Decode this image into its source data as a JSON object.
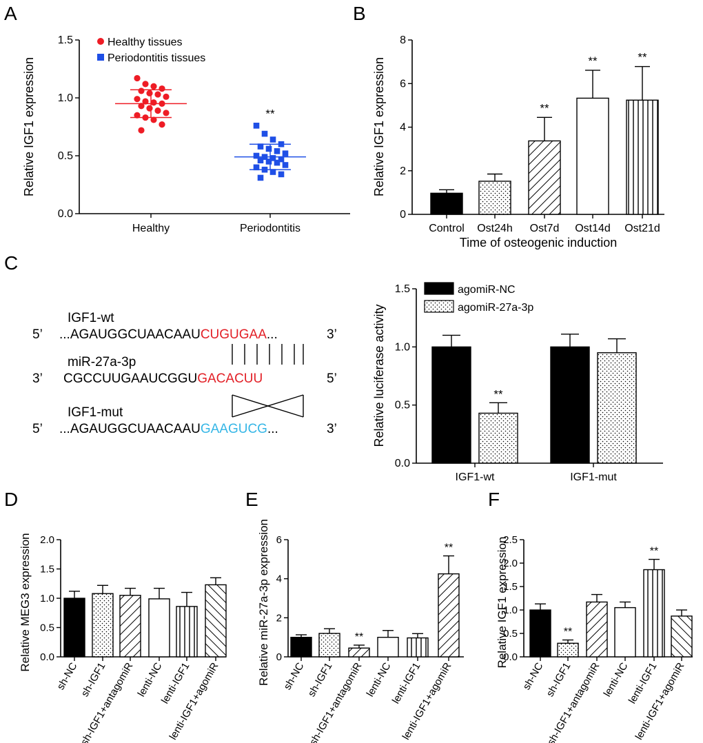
{
  "colors": {
    "healthy": "#ee1c25",
    "periodontitis": "#1f4fe6",
    "mir_red": "#e21f26",
    "mut_blue": "#35b6e6",
    "black": "#000000"
  },
  "chart_data": [
    {
      "panel": "A",
      "type": "scatter",
      "ylabel": "Relative IGF1 expression",
      "ylim": [
        0,
        1.5
      ],
      "yticks": [
        "0.0",
        "0.5",
        "1.0",
        "1.5"
      ],
      "categories": [
        "Healthy",
        "Periodontitis"
      ],
      "legend": [
        "Healthy tissues",
        "Periodontitis tissues"
      ],
      "series": [
        {
          "name": "Healthy tissues",
          "mean": 0.95,
          "sd": 0.12,
          "values": [
            1.17,
            1.12,
            1.1,
            1.08,
            1.06,
            1.04,
            1.03,
            1.01,
            0.99,
            0.97,
            0.96,
            0.95,
            0.93,
            0.91,
            0.89,
            0.87,
            0.85,
            0.83,
            0.81,
            0.77,
            0.72
          ]
        },
        {
          "name": "Periodontitis tissues",
          "mean": 0.49,
          "sd": 0.11,
          "significance": "**",
          "values": [
            0.76,
            0.69,
            0.64,
            0.6,
            0.58,
            0.56,
            0.54,
            0.52,
            0.5,
            0.49,
            0.48,
            0.47,
            0.46,
            0.45,
            0.44,
            0.42,
            0.4,
            0.38,
            0.36,
            0.34,
            0.31
          ]
        }
      ]
    },
    {
      "panel": "B",
      "type": "bar",
      "ylabel": "Relative IGF1 expression",
      "xlabel": "Time of osteogenic induction",
      "ylim": [
        0,
        8
      ],
      "yticks": [
        "0",
        "2",
        "4",
        "6",
        "8"
      ],
      "categories": [
        "Control",
        "Ost24h",
        "Ost7d",
        "Ost14d",
        "Ost21d"
      ],
      "values": [
        0.97,
        1.52,
        3.37,
        5.33,
        5.24
      ],
      "errors": [
        0.16,
        0.33,
        1.08,
        1.28,
        1.54
      ],
      "significance": [
        "",
        "",
        "**",
        "**",
        "**"
      ],
      "patterns": [
        "solid",
        "dots",
        "diag",
        "none",
        "vlines"
      ]
    },
    {
      "panel": "C",
      "type": "bar",
      "ylabel": "Relative luciferase activity",
      "ylim": [
        0,
        1.5
      ],
      "yticks": [
        "0.0",
        "0.5",
        "1.0",
        "1.5"
      ],
      "categories": [
        "IGF1-wt",
        "IGF1-mut"
      ],
      "legend": [
        "agomiR-NC",
        "agomiR-27a-3p"
      ],
      "series": [
        {
          "name": "agomiR-NC",
          "values": [
            1.0,
            1.0
          ],
          "errors": [
            0.1,
            0.11
          ],
          "significance": [
            "",
            ""
          ]
        },
        {
          "name": "agomiR-27a-3p",
          "values": [
            0.43,
            0.95
          ],
          "errors": [
            0.09,
            0.12
          ],
          "significance": [
            "**",
            ""
          ]
        }
      ]
    },
    {
      "panel": "D",
      "type": "bar",
      "ylabel": "Relative MEG3 expression",
      "ylim": [
        0,
        2.0
      ],
      "yticks": [
        "0.0",
        "0.5",
        "1.0",
        "1.5",
        "2.0"
      ],
      "categories": [
        "sh-NC",
        "sh-IGF1",
        "sh-IGF1+antagomiR",
        "lenti-NC",
        "lenti-IGF1",
        "lenti-IGF1+agomiR"
      ],
      "values": [
        1.0,
        1.08,
        1.05,
        0.99,
        0.86,
        1.23
      ],
      "errors": [
        0.12,
        0.14,
        0.12,
        0.18,
        0.24,
        0.12
      ],
      "significance": [
        "",
        "",
        "",
        "",
        "",
        ""
      ],
      "patterns": [
        "solid",
        "dots",
        "diag",
        "none",
        "vlines",
        "backdiag"
      ]
    },
    {
      "panel": "E",
      "type": "bar",
      "ylabel": "Relative miR-27a-3p expression",
      "ylim": [
        0,
        6
      ],
      "yticks": [
        "0",
        "2",
        "4",
        "6"
      ],
      "categories": [
        "sh-NC",
        "sh-IGF1",
        "sh-IGF1+antagomiR",
        "lenti-NC",
        "lenti-IGF1",
        "lenti-IGF1+agomiR"
      ],
      "values": [
        1.0,
        1.2,
        0.45,
        1.0,
        0.97,
        4.25
      ],
      "errors": [
        0.13,
        0.24,
        0.15,
        0.35,
        0.22,
        0.92
      ],
      "significance": [
        "",
        "",
        "**",
        "",
        "",
        "**"
      ],
      "patterns": [
        "solid",
        "dots",
        "diag",
        "none",
        "vlines",
        "diag"
      ]
    },
    {
      "panel": "F",
      "type": "bar",
      "ylabel": "Relative IGF1 expression",
      "ylim": [
        0,
        2.5
      ],
      "yticks": [
        "0.0",
        "0.5",
        "1.0",
        "1.5",
        "2.0",
        "2.5"
      ],
      "categories": [
        "sh-NC",
        "sh-IGF1",
        "sh-IGF1+antagomiR",
        "lenti-NC",
        "lenti-IGF1",
        "lenti-IGF1+agomiR"
      ],
      "values": [
        1.0,
        0.29,
        1.17,
        1.05,
        1.86,
        0.87
      ],
      "errors": [
        0.13,
        0.07,
        0.16,
        0.12,
        0.22,
        0.13
      ],
      "significance": [
        "",
        "**",
        "",
        "",
        "**",
        ""
      ],
      "patterns": [
        "solid",
        "dots",
        "diag",
        "none",
        "vlines",
        "backdiag"
      ]
    }
  ],
  "sequence": {
    "panel": "C",
    "wt_label": "IGF1-wt",
    "wt_prime_left": "5’",
    "wt_seq_black": "...AGAUGGCUAACAAU",
    "wt_seq_red": "CUGUGAA",
    "wt_seq_tail": "...",
    "wt_prime_right": "3’",
    "mir_label": "miR-27a-3p",
    "mir_prime_left": "3’",
    "mir_seq_black": "CGCCUUGAAUCGGU",
    "mir_seq_red": "GACACUU",
    "mir_prime_right": "5’",
    "mut_label": "IGF1-mut",
    "mut_prime_left": "5’",
    "mut_seq_black": "...AGAUGGCUAACAAU",
    "mut_seq_blue": "GAAGUCG",
    "mut_seq_tail": "...",
    "mut_prime_right": "3’"
  }
}
